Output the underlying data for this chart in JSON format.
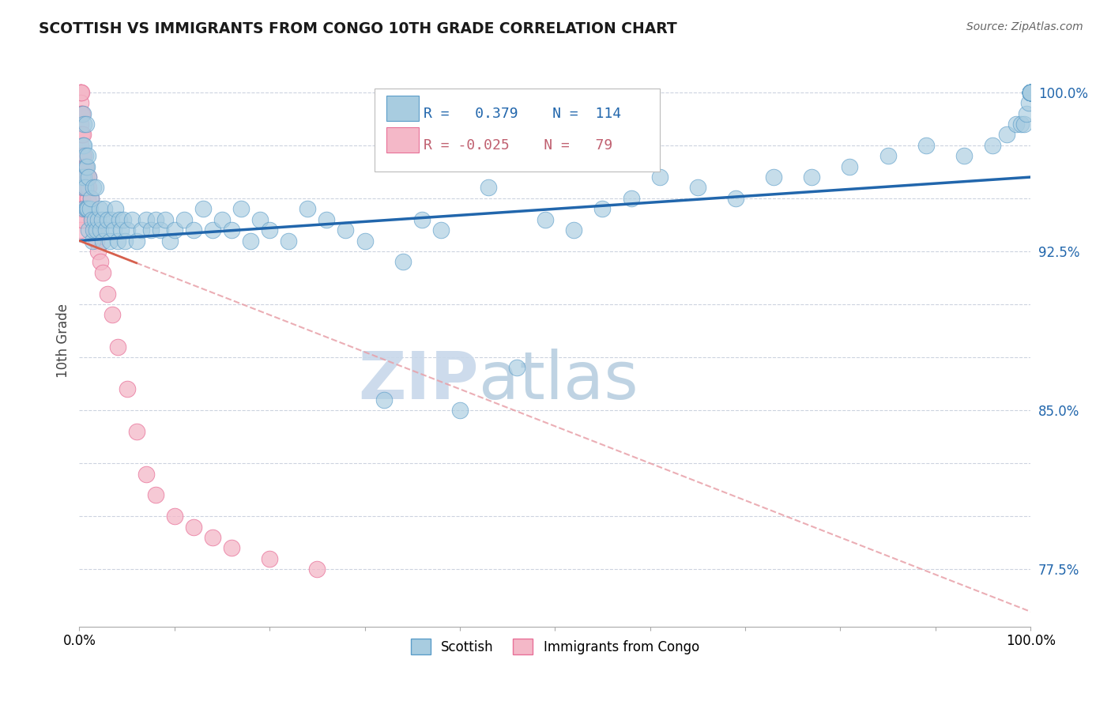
{
  "title": "SCOTTISH VS IMMIGRANTS FROM CONGO 10TH GRADE CORRELATION CHART",
  "source_text": "Source: ZipAtlas.com",
  "ylabel": "10th Grade",
  "xlim": [
    0,
    1.0
  ],
  "ylim": [
    0.748,
    1.018
  ],
  "yticks": [
    0.775,
    0.825,
    0.875,
    0.925,
    0.975
  ],
  "ytick_labels_right": [
    "77.5%",
    "85.0%",
    "92.5%",
    "100.0%"
  ],
  "ytick_positions_right": [
    0.775,
    0.85,
    0.925,
    1.0
  ],
  "legend_R_blue": "0.379",
  "legend_N_blue": "114",
  "legend_R_pink": "-0.025",
  "legend_N_pink": "79",
  "blue_color": "#a8cce0",
  "blue_edge": "#5b9dc9",
  "pink_color": "#f4b8c8",
  "pink_edge": "#e87098",
  "trend_blue_color": "#2166ac",
  "trend_pink_color": "#d6604d",
  "trend_pink_color_dashed": "#e8a0a8",
  "watermark_color": "#c8d8ea",
  "background_color": "#ffffff",
  "scottish_x": [
    0.003,
    0.004,
    0.004,
    0.004,
    0.005,
    0.005,
    0.005,
    0.005,
    0.006,
    0.006,
    0.007,
    0.007,
    0.007,
    0.008,
    0.008,
    0.009,
    0.009,
    0.01,
    0.01,
    0.011,
    0.012,
    0.013,
    0.014,
    0.015,
    0.015,
    0.016,
    0.017,
    0.018,
    0.02,
    0.021,
    0.022,
    0.024,
    0.025,
    0.026,
    0.028,
    0.03,
    0.032,
    0.034,
    0.036,
    0.038,
    0.04,
    0.042,
    0.044,
    0.046,
    0.048,
    0.05,
    0.055,
    0.06,
    0.065,
    0.07,
    0.075,
    0.08,
    0.085,
    0.09,
    0.095,
    0.1,
    0.11,
    0.12,
    0.13,
    0.14,
    0.15,
    0.16,
    0.17,
    0.18,
    0.19,
    0.2,
    0.22,
    0.24,
    0.26,
    0.28,
    0.3,
    0.32,
    0.34,
    0.36,
    0.38,
    0.4,
    0.43,
    0.46,
    0.49,
    0.52,
    0.55,
    0.58,
    0.61,
    0.65,
    0.69,
    0.73,
    0.77,
    0.81,
    0.85,
    0.89,
    0.93,
    0.96,
    0.975,
    0.985,
    0.99,
    0.993,
    0.996,
    0.998,
    1.0,
    1.0,
    1.0,
    1.0,
    1.0,
    1.0,
    1.0,
    1.0,
    1.0,
    1.0,
    1.0,
    1.0,
    1.0,
    1.0,
    1.0,
    1.0
  ],
  "scottish_y": [
    0.96,
    0.955,
    0.975,
    0.99,
    0.945,
    0.96,
    0.975,
    0.985,
    0.955,
    0.97,
    0.945,
    0.965,
    0.985,
    0.945,
    0.965,
    0.945,
    0.97,
    0.935,
    0.96,
    0.945,
    0.95,
    0.94,
    0.93,
    0.935,
    0.955,
    0.94,
    0.955,
    0.935,
    0.94,
    0.945,
    0.935,
    0.94,
    0.93,
    0.945,
    0.935,
    0.94,
    0.93,
    0.94,
    0.935,
    0.945,
    0.93,
    0.94,
    0.935,
    0.94,
    0.93,
    0.935,
    0.94,
    0.93,
    0.935,
    0.94,
    0.935,
    0.94,
    0.935,
    0.94,
    0.93,
    0.935,
    0.94,
    0.935,
    0.945,
    0.935,
    0.94,
    0.935,
    0.945,
    0.93,
    0.94,
    0.935,
    0.93,
    0.945,
    0.94,
    0.935,
    0.93,
    0.855,
    0.92,
    0.94,
    0.935,
    0.85,
    0.955,
    0.87,
    0.94,
    0.935,
    0.945,
    0.95,
    0.96,
    0.955,
    0.95,
    0.96,
    0.96,
    0.965,
    0.97,
    0.975,
    0.97,
    0.975,
    0.98,
    0.985,
    0.985,
    0.985,
    0.99,
    0.995,
    1.0,
    1.0,
    1.0,
    1.0,
    1.0,
    1.0,
    1.0,
    1.0,
    1.0,
    1.0,
    1.0,
    1.0,
    1.0,
    1.0,
    1.0,
    1.0
  ],
  "congo_x": [
    0.001,
    0.001,
    0.001,
    0.001,
    0.001,
    0.001,
    0.001,
    0.001,
    0.001,
    0.001,
    0.001,
    0.001,
    0.001,
    0.001,
    0.001,
    0.001,
    0.001,
    0.001,
    0.001,
    0.001,
    0.002,
    0.002,
    0.002,
    0.002,
    0.002,
    0.002,
    0.002,
    0.002,
    0.002,
    0.002,
    0.003,
    0.003,
    0.003,
    0.003,
    0.003,
    0.003,
    0.003,
    0.003,
    0.003,
    0.003,
    0.004,
    0.004,
    0.004,
    0.004,
    0.004,
    0.005,
    0.005,
    0.005,
    0.005,
    0.006,
    0.006,
    0.006,
    0.007,
    0.007,
    0.008,
    0.008,
    0.009,
    0.01,
    0.01,
    0.012,
    0.014,
    0.016,
    0.018,
    0.02,
    0.022,
    0.025,
    0.03,
    0.035,
    0.04,
    0.05,
    0.06,
    0.07,
    0.08,
    0.1,
    0.12,
    0.14,
    0.16,
    0.2,
    0.25
  ],
  "congo_y": [
    1.0,
    1.0,
    1.0,
    0.995,
    0.99,
    0.985,
    0.98,
    0.975,
    0.97,
    0.965,
    0.96,
    0.96,
    0.96,
    0.955,
    0.955,
    0.95,
    0.95,
    0.945,
    0.94,
    0.935,
    1.0,
    0.99,
    0.98,
    0.97,
    0.965,
    0.96,
    0.96,
    0.955,
    0.95,
    0.945,
    0.99,
    0.98,
    0.97,
    0.965,
    0.96,
    0.96,
    0.955,
    0.95,
    0.945,
    0.94,
    0.98,
    0.97,
    0.965,
    0.96,
    0.955,
    0.97,
    0.965,
    0.96,
    0.955,
    0.965,
    0.96,
    0.955,
    0.96,
    0.955,
    0.96,
    0.955,
    0.95,
    0.96,
    0.955,
    0.95,
    0.94,
    0.935,
    0.93,
    0.925,
    0.92,
    0.915,
    0.905,
    0.895,
    0.88,
    0.86,
    0.84,
    0.82,
    0.81,
    0.8,
    0.795,
    0.79,
    0.785,
    0.78,
    0.775
  ]
}
